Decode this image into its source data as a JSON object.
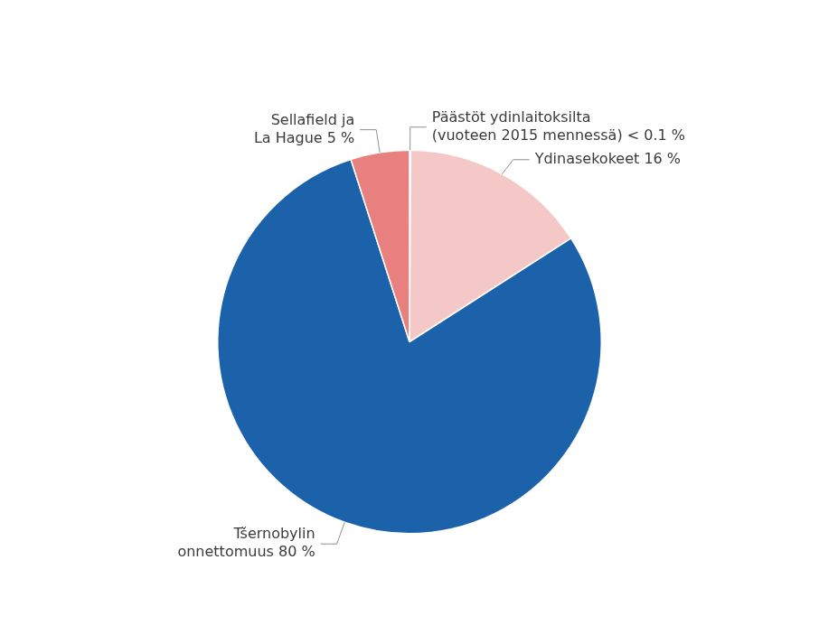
{
  "chart_data": {
    "type": "pie",
    "values": [
      0.1,
      16,
      80,
      5
    ],
    "colors": [
      "#f2b0b0",
      "#f5c8c8",
      "#1b62aa",
      "#e88080"
    ],
    "annotations": [
      "Päästöt ydinlaitoksilta\n(vuoteen 2015 mennessä) < 0.1 %",
      "Ydinasekokeet 16 %",
      "Tšernobylin\nonnettomuus 80 %",
      "Sellafield ja\nLa Hague 5 %"
    ]
  }
}
